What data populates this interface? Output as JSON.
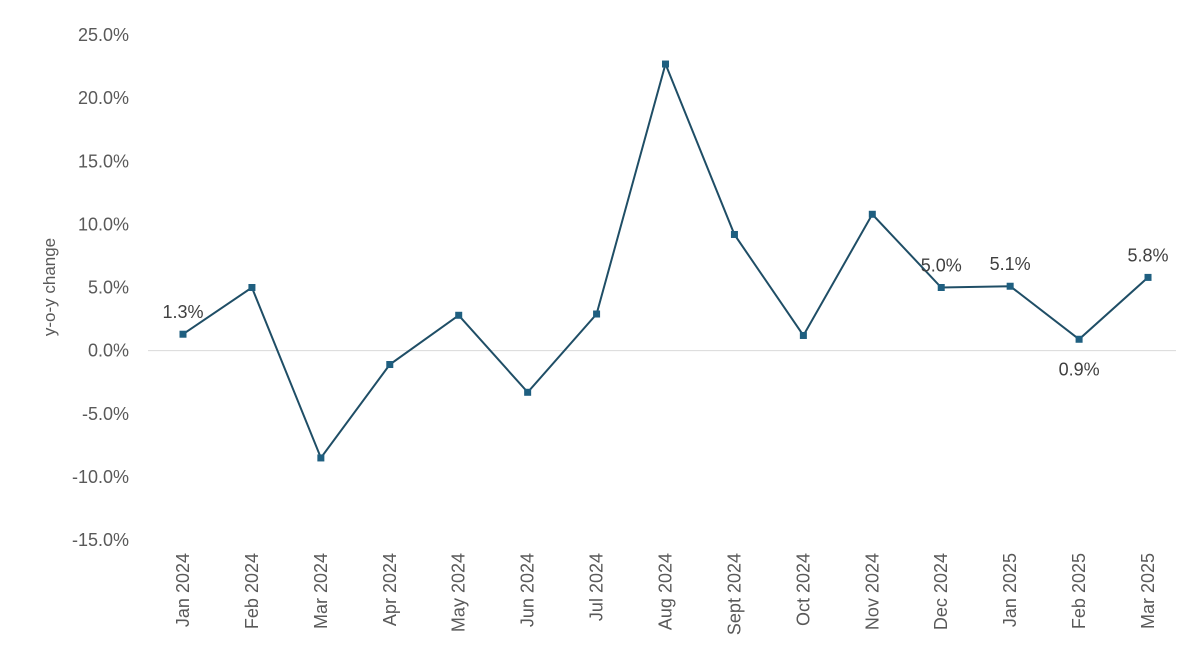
{
  "chart_data": {
    "type": "line",
    "title": "",
    "xlabel": "",
    "ylabel": "y-o-y change",
    "categories": [
      "Jan 2024",
      "Feb 2024",
      "Mar 2024",
      "Apr 2024",
      "May 2024",
      "Jun 2024",
      "Jul 2024",
      "Aug 2024",
      "Sept 2024",
      "Oct 2024",
      "Nov 2024",
      "Dec 2024",
      "Jan 2025",
      "Feb 2025",
      "Mar 2025"
    ],
    "series": [
      {
        "values": [
          1.3,
          5.0,
          -8.5,
          -1.1,
          2.8,
          -3.3,
          2.9,
          22.7,
          9.2,
          1.2,
          10.8,
          5.0,
          5.1,
          0.9,
          5.8
        ]
      }
    ],
    "ylim": [
      -15,
      25
    ],
    "yticks": [
      -15,
      -10,
      -5,
      0,
      5,
      10,
      15,
      20,
      25
    ],
    "ytick_labels": [
      "-15.0%",
      "-10.0%",
      "-5.0%",
      "0.0%",
      "5.0%",
      "10.0%",
      "15.0%",
      "20.0%",
      "25.0%"
    ],
    "data_labels": [
      {
        "index": 0,
        "text": "1.3%",
        "position": "above"
      },
      {
        "index": 11,
        "text": "5.0%",
        "position": "above"
      },
      {
        "index": 12,
        "text": "5.1%",
        "position": "above"
      },
      {
        "index": 13,
        "text": "0.9%",
        "position": "below"
      },
      {
        "index": 14,
        "text": "5.8%",
        "position": "above"
      }
    ],
    "grid": false,
    "legend": "none",
    "colors": {
      "line": "#1f4e66",
      "marker": "#1f5f80",
      "zero_line": "#d9d9d9"
    }
  }
}
